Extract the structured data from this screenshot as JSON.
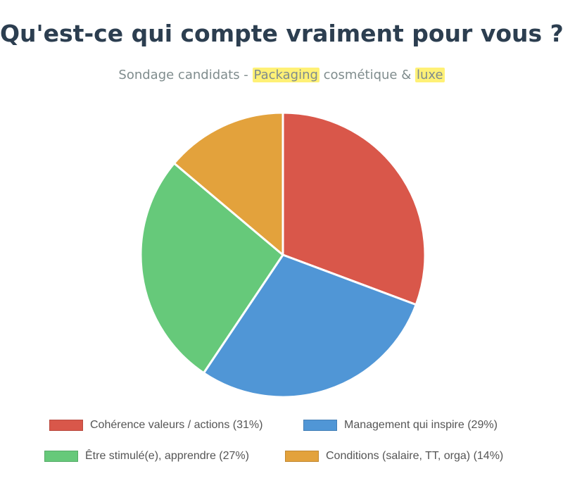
{
  "title": "Qu'est-ce qui compte vraiment pour vous ?",
  "subtitle": {
    "part1": "Sondage candidats - ",
    "highlight1": "Packaging",
    "part2": " cosmétique & ",
    "highlight2": "luxe"
  },
  "chart_data": {
    "type": "pie",
    "title": "Qu'est-ce qui compte vraiment pour vous ?",
    "subtitle": "Sondage candidats - Packaging cosmétique & luxe",
    "categories": [
      "Cohérence valeurs / actions",
      "Management qui inspire",
      "Être stimulé(e), apprendre",
      "Conditions (salaire, TT, orga)"
    ],
    "values": [
      31,
      29,
      27,
      14
    ],
    "unit": "%",
    "colors": [
      "#d9574a",
      "#5096d6",
      "#66c97a",
      "#e3a23c"
    ],
    "legend_position": "bottom",
    "legend_labels": [
      "Cohérence valeurs / actions (31%)",
      "Management qui inspire (29%)",
      "Être stimulé(e), apprendre (27%)",
      "Conditions (salaire, TT, orga) (14%)"
    ]
  }
}
